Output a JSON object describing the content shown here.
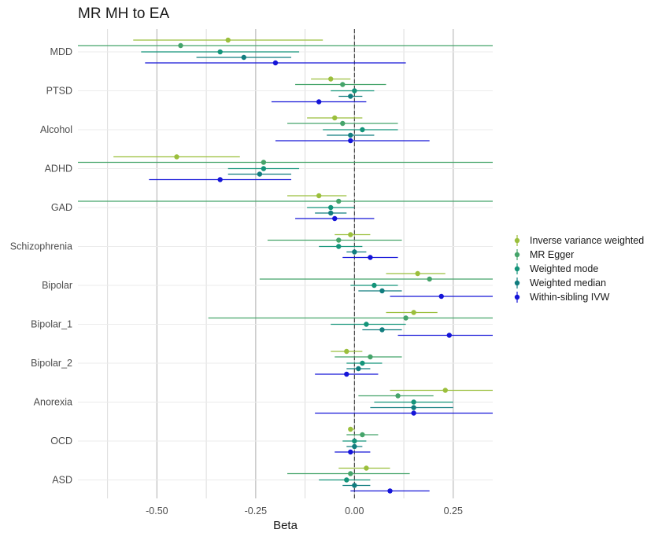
{
  "chart_data": {
    "type": "forest",
    "title": "MR MH to EA",
    "xlabel": "Beta",
    "ylabel": "",
    "xlim": [
      -0.7,
      0.35
    ],
    "x_ticks": [
      {
        "value": -0.5,
        "label": "-0.50"
      },
      {
        "value": -0.25,
        "label": "-0.25"
      },
      {
        "value": 0,
        "label": "0.00"
      },
      {
        "value": 0.25,
        "label": "0.25"
      }
    ],
    "reference_line": 0,
    "legend_position": "right",
    "categories": [
      "MDD",
      "PTSD",
      "Alcohol",
      "ADHD",
      "GAD",
      "Schizophrenia",
      "Bipolar",
      "Bipolar_1",
      "Bipolar_2",
      "Anorexia",
      "OCD",
      "ASD"
    ],
    "series": [
      {
        "name": "Inverse variance weighted",
        "color": "#9bbf3c",
        "points": [
          {
            "category": "MDD",
            "estimate": -0.32,
            "lower": -0.56,
            "upper": -0.08
          },
          {
            "category": "PTSD",
            "estimate": -0.06,
            "lower": -0.11,
            "upper": -0.01
          },
          {
            "category": "Alcohol",
            "estimate": -0.05,
            "lower": -0.12,
            "upper": 0.02
          },
          {
            "category": "ADHD",
            "estimate": -0.45,
            "lower": -0.61,
            "upper": -0.29
          },
          {
            "category": "GAD",
            "estimate": -0.09,
            "lower": -0.17,
            "upper": -0.02
          },
          {
            "category": "Schizophrenia",
            "estimate": -0.01,
            "lower": -0.05,
            "upper": 0.04
          },
          {
            "category": "Bipolar",
            "estimate": 0.16,
            "lower": 0.08,
            "upper": 0.23
          },
          {
            "category": "Bipolar_1",
            "estimate": 0.15,
            "lower": 0.08,
            "upper": 0.21
          },
          {
            "category": "Bipolar_2",
            "estimate": -0.02,
            "lower": -0.06,
            "upper": 0.02
          },
          {
            "category": "Anorexia",
            "estimate": 0.23,
            "lower": 0.09,
            "upper": 0.35
          },
          {
            "category": "OCD",
            "estimate": -0.01,
            "lower": -0.01,
            "upper": 0.0
          },
          {
            "category": "ASD",
            "estimate": 0.03,
            "lower": -0.04,
            "upper": 0.09
          }
        ]
      },
      {
        "name": "MR Egger",
        "color": "#45a46a",
        "points": [
          {
            "category": "MDD",
            "estimate": -0.44,
            "lower": -0.7,
            "upper": 0.35
          },
          {
            "category": "PTSD",
            "estimate": -0.03,
            "lower": -0.15,
            "upper": 0.08
          },
          {
            "category": "Alcohol",
            "estimate": -0.03,
            "lower": -0.17,
            "upper": 0.11
          },
          {
            "category": "ADHD",
            "estimate": -0.23,
            "lower": -0.7,
            "upper": 0.35
          },
          {
            "category": "GAD",
            "estimate": -0.04,
            "lower": -0.7,
            "upper": 0.35
          },
          {
            "category": "Schizophrenia",
            "estimate": -0.04,
            "lower": -0.22,
            "upper": 0.12
          },
          {
            "category": "Bipolar",
            "estimate": 0.19,
            "lower": -0.24,
            "upper": 0.35
          },
          {
            "category": "Bipolar_1",
            "estimate": 0.13,
            "lower": -0.37,
            "upper": 0.35
          },
          {
            "category": "Bipolar_2",
            "estimate": 0.04,
            "lower": -0.05,
            "upper": 0.12
          },
          {
            "category": "Anorexia",
            "estimate": 0.11,
            "lower": 0.01,
            "upper": 0.2
          },
          {
            "category": "OCD",
            "estimate": 0.02,
            "lower": -0.02,
            "upper": 0.06
          },
          {
            "category": "ASD",
            "estimate": -0.01,
            "lower": -0.17,
            "upper": 0.14
          }
        ]
      },
      {
        "name": "Weighted mode",
        "color": "#14947a",
        "points": [
          {
            "category": "MDD",
            "estimate": -0.34,
            "lower": -0.54,
            "upper": -0.14
          },
          {
            "category": "PTSD",
            "estimate": 0.0,
            "lower": -0.06,
            "upper": 0.05
          },
          {
            "category": "Alcohol",
            "estimate": 0.02,
            "lower": -0.08,
            "upper": 0.11
          },
          {
            "category": "ADHD",
            "estimate": -0.23,
            "lower": -0.32,
            "upper": -0.14
          },
          {
            "category": "GAD",
            "estimate": -0.06,
            "lower": -0.12,
            "upper": 0.0
          },
          {
            "category": "Schizophrenia",
            "estimate": -0.04,
            "lower": -0.09,
            "upper": 0.02
          },
          {
            "category": "Bipolar",
            "estimate": 0.05,
            "lower": -0.01,
            "upper": 0.11
          },
          {
            "category": "Bipolar_1",
            "estimate": 0.03,
            "lower": -0.06,
            "upper": 0.13
          },
          {
            "category": "Bipolar_2",
            "estimate": 0.02,
            "lower": -0.02,
            "upper": 0.07
          },
          {
            "category": "Anorexia",
            "estimate": 0.15,
            "lower": 0.05,
            "upper": 0.25
          },
          {
            "category": "OCD",
            "estimate": 0.0,
            "lower": -0.03,
            "upper": 0.03
          },
          {
            "category": "ASD",
            "estimate": -0.02,
            "lower": -0.09,
            "upper": 0.04
          }
        ]
      },
      {
        "name": "Weighted median",
        "color": "#117d7f",
        "points": [
          {
            "category": "MDD",
            "estimate": -0.28,
            "lower": -0.4,
            "upper": -0.16
          },
          {
            "category": "PTSD",
            "estimate": -0.01,
            "lower": -0.04,
            "upper": 0.02
          },
          {
            "category": "Alcohol",
            "estimate": -0.01,
            "lower": -0.07,
            "upper": 0.05
          },
          {
            "category": "ADHD",
            "estimate": -0.24,
            "lower": -0.32,
            "upper": -0.16
          },
          {
            "category": "GAD",
            "estimate": -0.06,
            "lower": -0.1,
            "upper": -0.02
          },
          {
            "category": "Schizophrenia",
            "estimate": 0.0,
            "lower": -0.02,
            "upper": 0.03
          },
          {
            "category": "Bipolar",
            "estimate": 0.07,
            "lower": 0.01,
            "upper": 0.12
          },
          {
            "category": "Bipolar_1",
            "estimate": 0.07,
            "lower": 0.02,
            "upper": 0.12
          },
          {
            "category": "Bipolar_2",
            "estimate": 0.01,
            "lower": -0.02,
            "upper": 0.04
          },
          {
            "category": "Anorexia",
            "estimate": 0.15,
            "lower": 0.04,
            "upper": 0.25
          },
          {
            "category": "OCD",
            "estimate": 0.0,
            "lower": -0.02,
            "upper": 0.02
          },
          {
            "category": "ASD",
            "estimate": 0.0,
            "lower": -0.03,
            "upper": 0.04
          }
        ]
      },
      {
        "name": "Within-sibling IVW",
        "color": "#1515d8",
        "points": [
          {
            "category": "MDD",
            "estimate": -0.2,
            "lower": -0.53,
            "upper": 0.13
          },
          {
            "category": "PTSD",
            "estimate": -0.09,
            "lower": -0.21,
            "upper": 0.03
          },
          {
            "category": "Alcohol",
            "estimate": -0.01,
            "lower": -0.2,
            "upper": 0.19
          },
          {
            "category": "ADHD",
            "estimate": -0.34,
            "lower": -0.52,
            "upper": -0.16
          },
          {
            "category": "GAD",
            "estimate": -0.05,
            "lower": -0.15,
            "upper": 0.05
          },
          {
            "category": "Schizophrenia",
            "estimate": 0.04,
            "lower": -0.03,
            "upper": 0.11
          },
          {
            "category": "Bipolar",
            "estimate": 0.22,
            "lower": 0.09,
            "upper": 0.35
          },
          {
            "category": "Bipolar_1",
            "estimate": 0.24,
            "lower": 0.11,
            "upper": 0.35
          },
          {
            "category": "Bipolar_2",
            "estimate": -0.02,
            "lower": -0.1,
            "upper": 0.06
          },
          {
            "category": "Anorexia",
            "estimate": 0.15,
            "lower": -0.1,
            "upper": 0.35
          },
          {
            "category": "OCD",
            "estimate": -0.01,
            "lower": -0.05,
            "upper": 0.04
          },
          {
            "category": "ASD",
            "estimate": 0.09,
            "lower": -0.01,
            "upper": 0.19
          }
        ]
      }
    ]
  }
}
